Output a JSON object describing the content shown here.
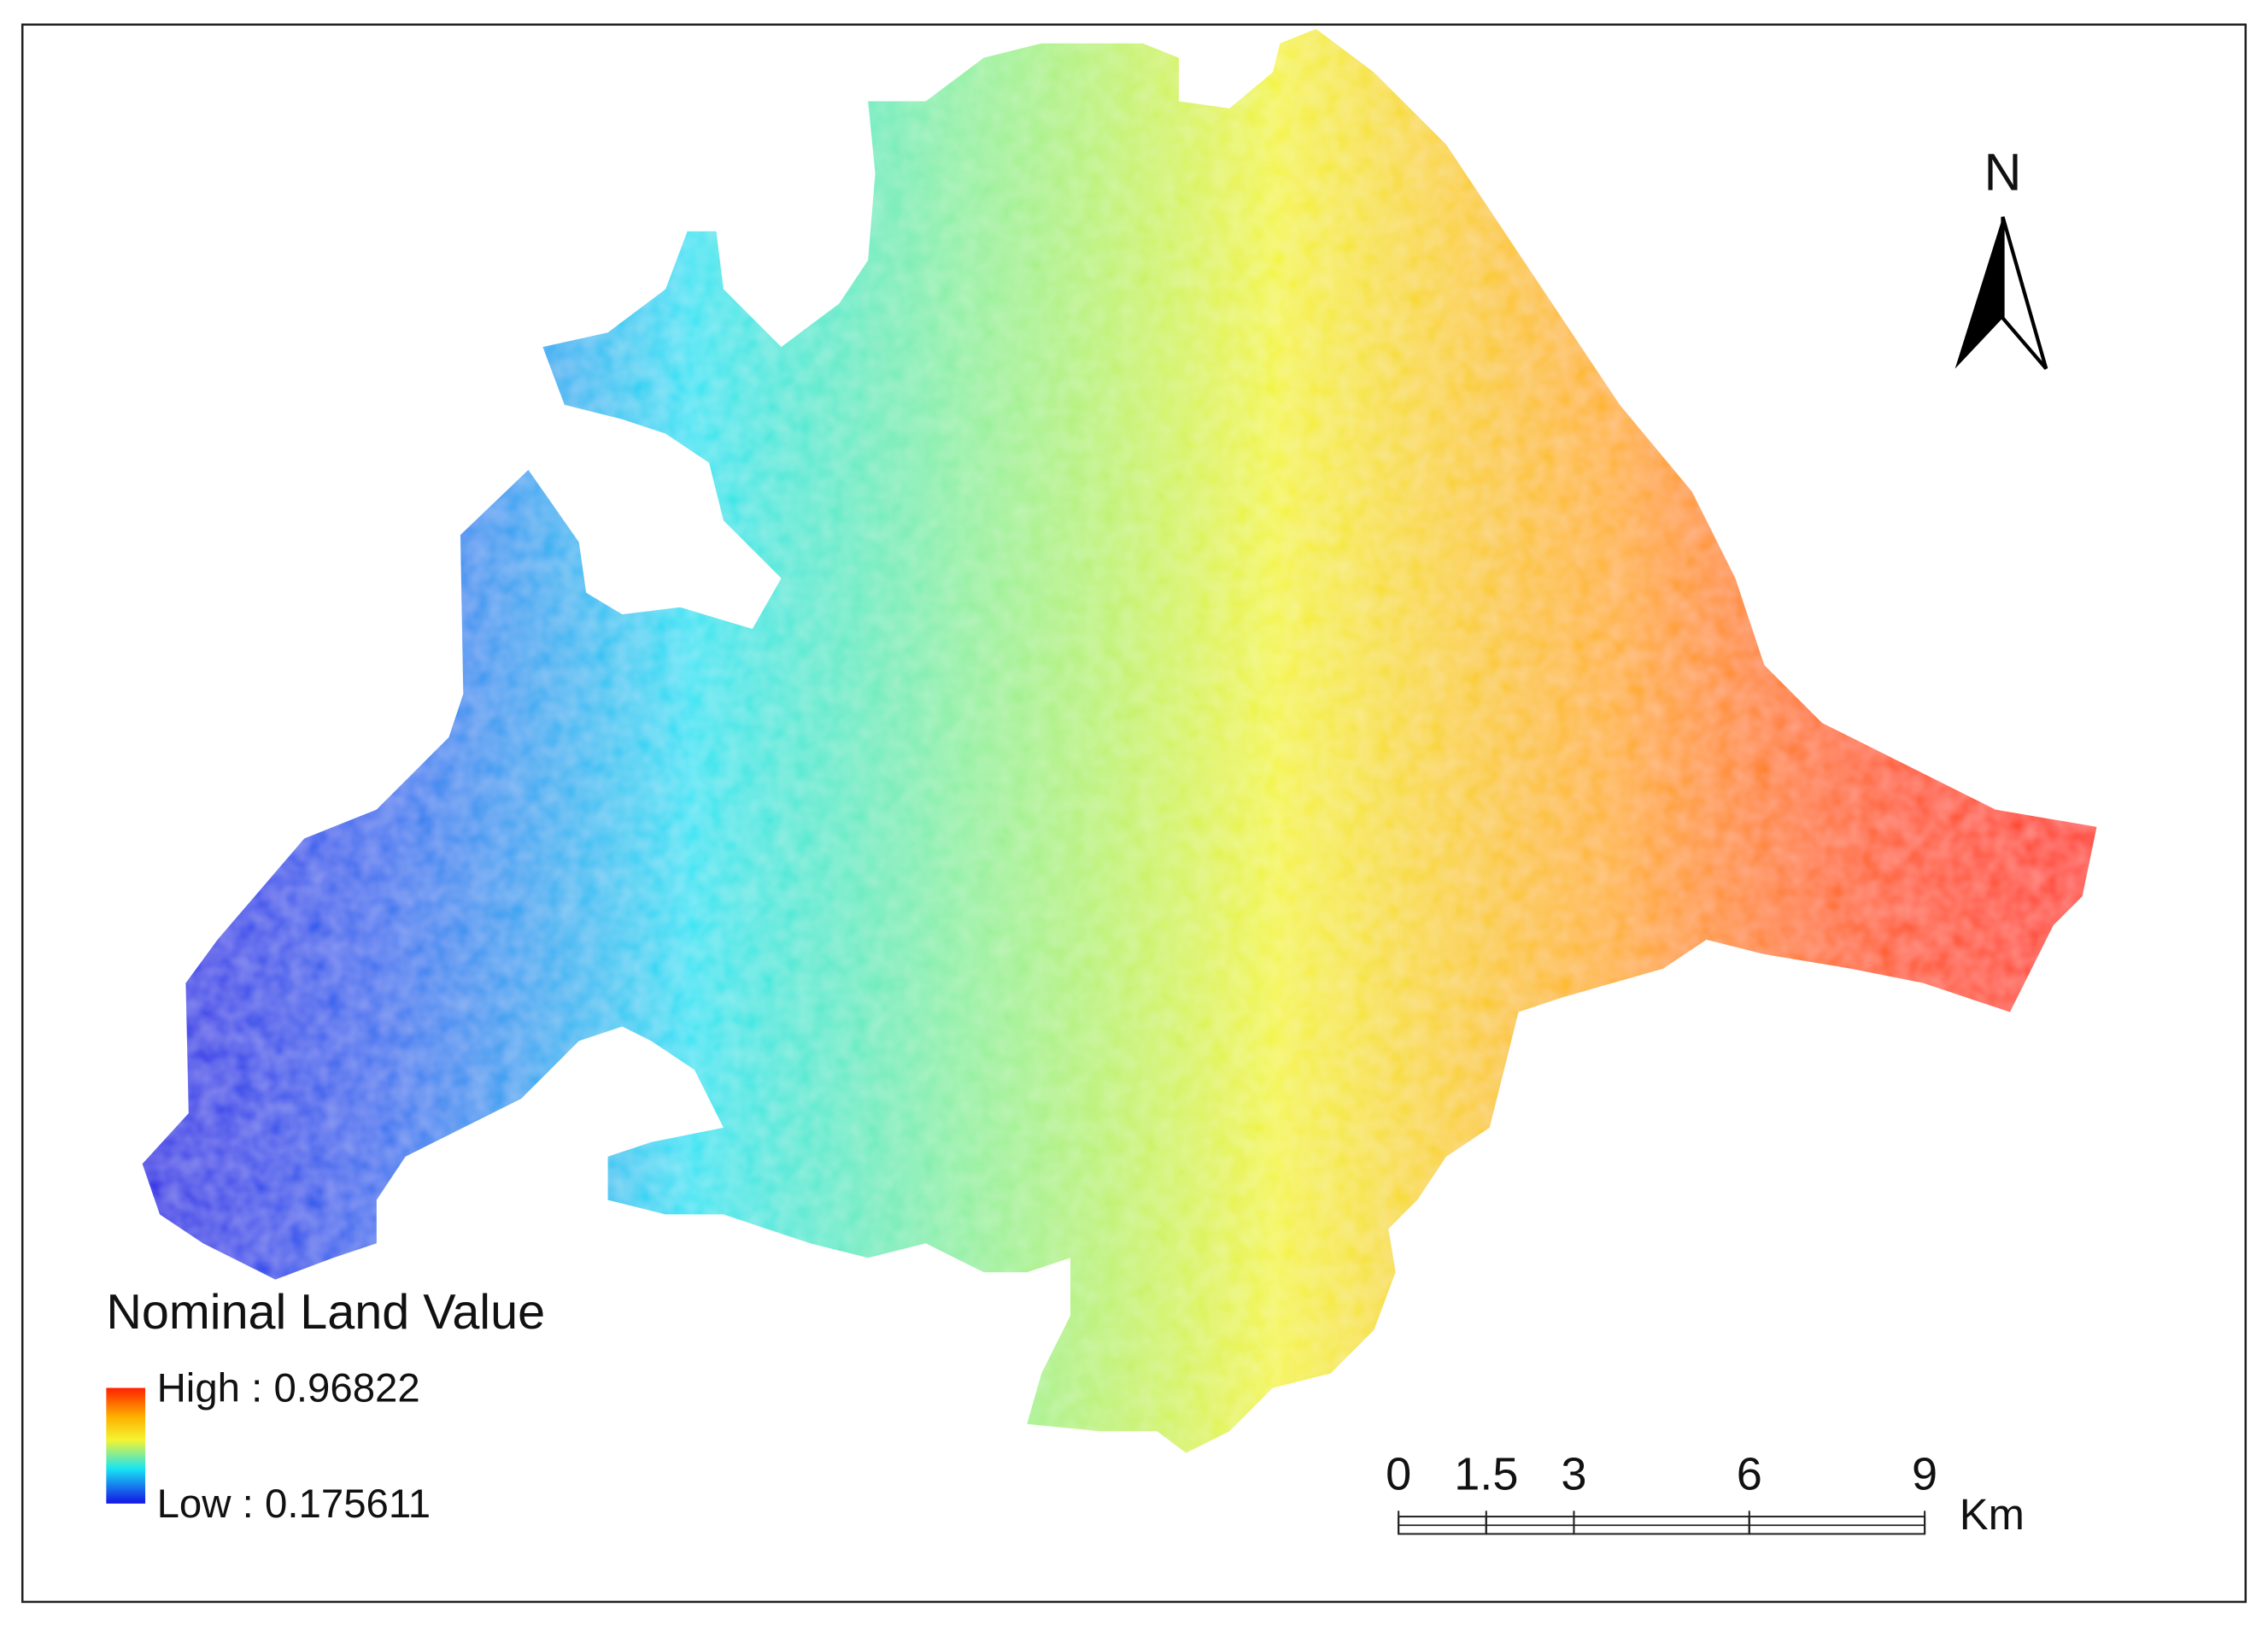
{
  "north": "N",
  "legend": {
    "title": "Nominal Land Value",
    "high_label": "High : 0.96822",
    "low_label": "Low : 0.175611"
  },
  "scale_bar": {
    "ticks": [
      0,
      1.5,
      3,
      6,
      9
    ],
    "unit": "Km"
  }
}
